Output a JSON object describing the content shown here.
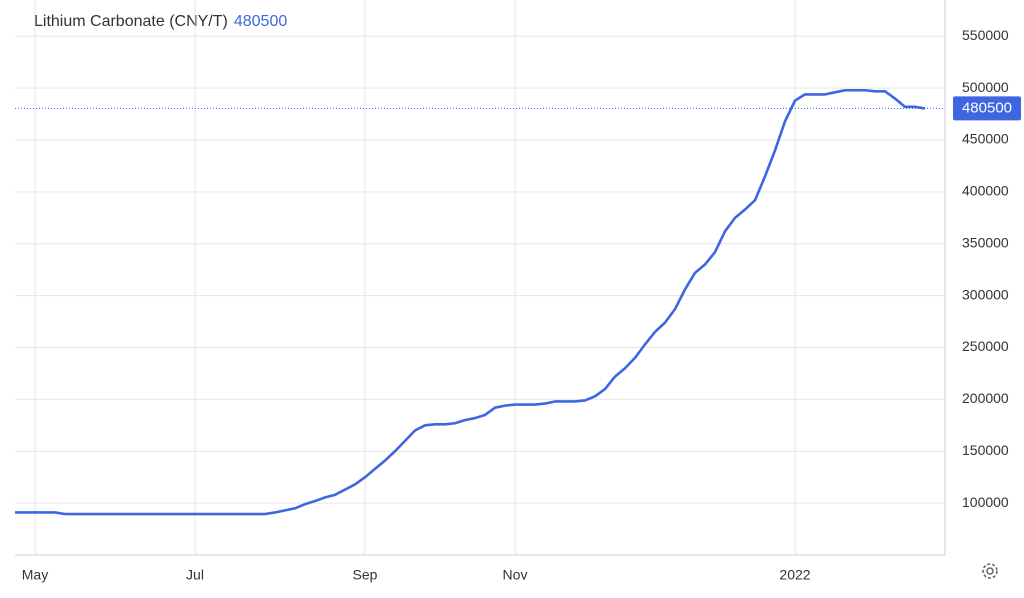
{
  "chart_data": {
    "type": "line",
    "title": "Lithium Carbonate (CNY/T)",
    "color": "#3d66e0",
    "categories": [
      null,
      null,
      "May",
      null,
      null,
      null,
      null,
      null,
      null,
      null,
      null,
      null,
      null,
      null,
      null,
      null,
      null,
      null,
      "Jul",
      null,
      null,
      null,
      null,
      null,
      null,
      null,
      null,
      null,
      null,
      null,
      null,
      null,
      null,
      null,
      null,
      "Sep",
      null,
      null,
      null,
      null,
      null,
      null,
      null,
      null,
      null,
      null,
      null,
      null,
      null,
      null,
      "Nov",
      null,
      null,
      null,
      null,
      null,
      null,
      null,
      null,
      null,
      null,
      null,
      null,
      null,
      null,
      null,
      null,
      null,
      null,
      null,
      null,
      null,
      null,
      null,
      null,
      null,
      null,
      null,
      "2022",
      null,
      null,
      null,
      null,
      null,
      null,
      null,
      null,
      null,
      null,
      null,
      null,
      null
    ],
    "values": [
      91000,
      91000,
      91000,
      91000,
      91000,
      89500,
      89500,
      89500,
      89500,
      89500,
      89500,
      89500,
      89500,
      89500,
      89500,
      89500,
      89500,
      89500,
      89500,
      89500,
      89500,
      89500,
      89500,
      89500,
      89500,
      89500,
      91000,
      93000,
      95000,
      99000,
      102000,
      105500,
      108000,
      113000,
      118000,
      125000,
      133000,
      141000,
      150000,
      160000,
      170000,
      175000,
      176000,
      176000,
      177000,
      180000,
      182000,
      185000,
      192000,
      194000,
      195000,
      195000,
      195000,
      196000,
      198000,
      198000,
      198000,
      199000,
      203000,
      210000,
      222000,
      230000,
      240000,
      253000,
      265000,
      274000,
      287000,
      306000,
      322000,
      330000,
      342000,
      362000,
      375000,
      383000,
      392000,
      415000,
      440000,
      468000,
      488000,
      494000,
      494000,
      494000,
      496000,
      498000,
      498000,
      498000,
      497000,
      497000,
      490000,
      482000,
      482000,
      480500
    ],
    "ylim": [
      50000,
      585000
    ],
    "yticks": [
      100000,
      150000,
      200000,
      250000,
      300000,
      350000,
      400000,
      450000,
      500000,
      550000
    ],
    "grid": true
  }
}
